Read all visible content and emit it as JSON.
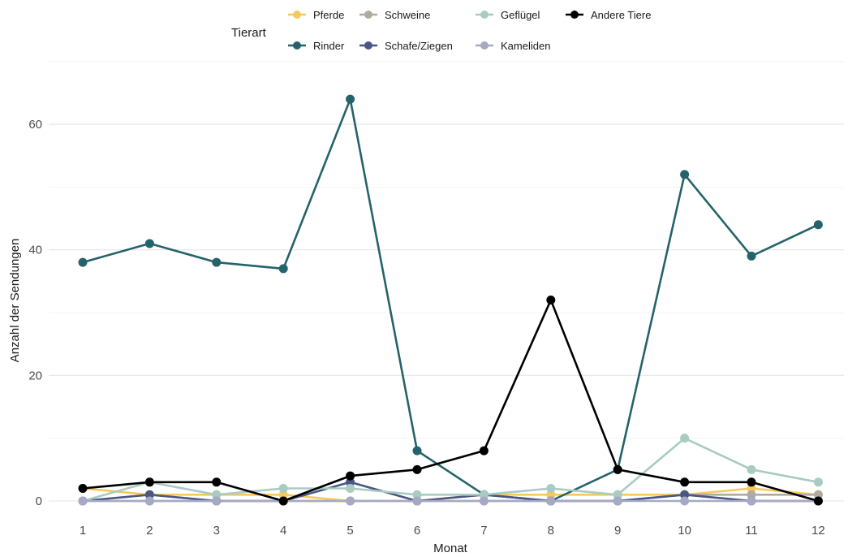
{
  "chart_data": {
    "type": "line",
    "xlabel": "Monat",
    "ylabel": "Anzahl der Sendungen",
    "x": [
      1,
      2,
      3,
      4,
      5,
      6,
      7,
      8,
      9,
      10,
      11,
      12
    ],
    "xlim": [
      1,
      12
    ],
    "ylim": [
      0,
      70
    ],
    "yticks": [
      0,
      20,
      40,
      60
    ],
    "grid": true,
    "legend_title": "Tierart",
    "legend_position": "top",
    "series": [
      {
        "name": "Pferde",
        "color": "#f5c95b",
        "values": [
          2,
          1,
          1,
          1,
          0,
          0,
          1,
          1,
          1,
          1,
          2,
          1
        ]
      },
      {
        "name": "Rinder",
        "color": "#25636a",
        "values": [
          38,
          41,
          38,
          37,
          64,
          8,
          1,
          0,
          5,
          52,
          39,
          44
        ]
      },
      {
        "name": "Schweine",
        "color": "#b1ab9f",
        "values": [
          0,
          0,
          0,
          0,
          0,
          0,
          0,
          0,
          0,
          1,
          1,
          1
        ]
      },
      {
        "name": "Schafe/Ziegen",
        "color": "#4a5686",
        "values": [
          0,
          1,
          0,
          0,
          3,
          0,
          1,
          0,
          0,
          1,
          0,
          0
        ]
      },
      {
        "name": "Geflügel",
        "color": "#a8cbc2",
        "values": [
          0,
          3,
          1,
          2,
          2,
          1,
          1,
          2,
          1,
          10,
          5,
          3
        ]
      },
      {
        "name": "Kameliden",
        "color": "#a5a9c4",
        "values": [
          0,
          0,
          0,
          0,
          0,
          0,
          0,
          0,
          0,
          0,
          0,
          0
        ]
      },
      {
        "name": "Andere Tiere",
        "color": "#000000",
        "values": [
          2,
          3,
          3,
          0,
          4,
          5,
          8,
          32,
          5,
          3,
          3,
          0
        ]
      }
    ]
  }
}
